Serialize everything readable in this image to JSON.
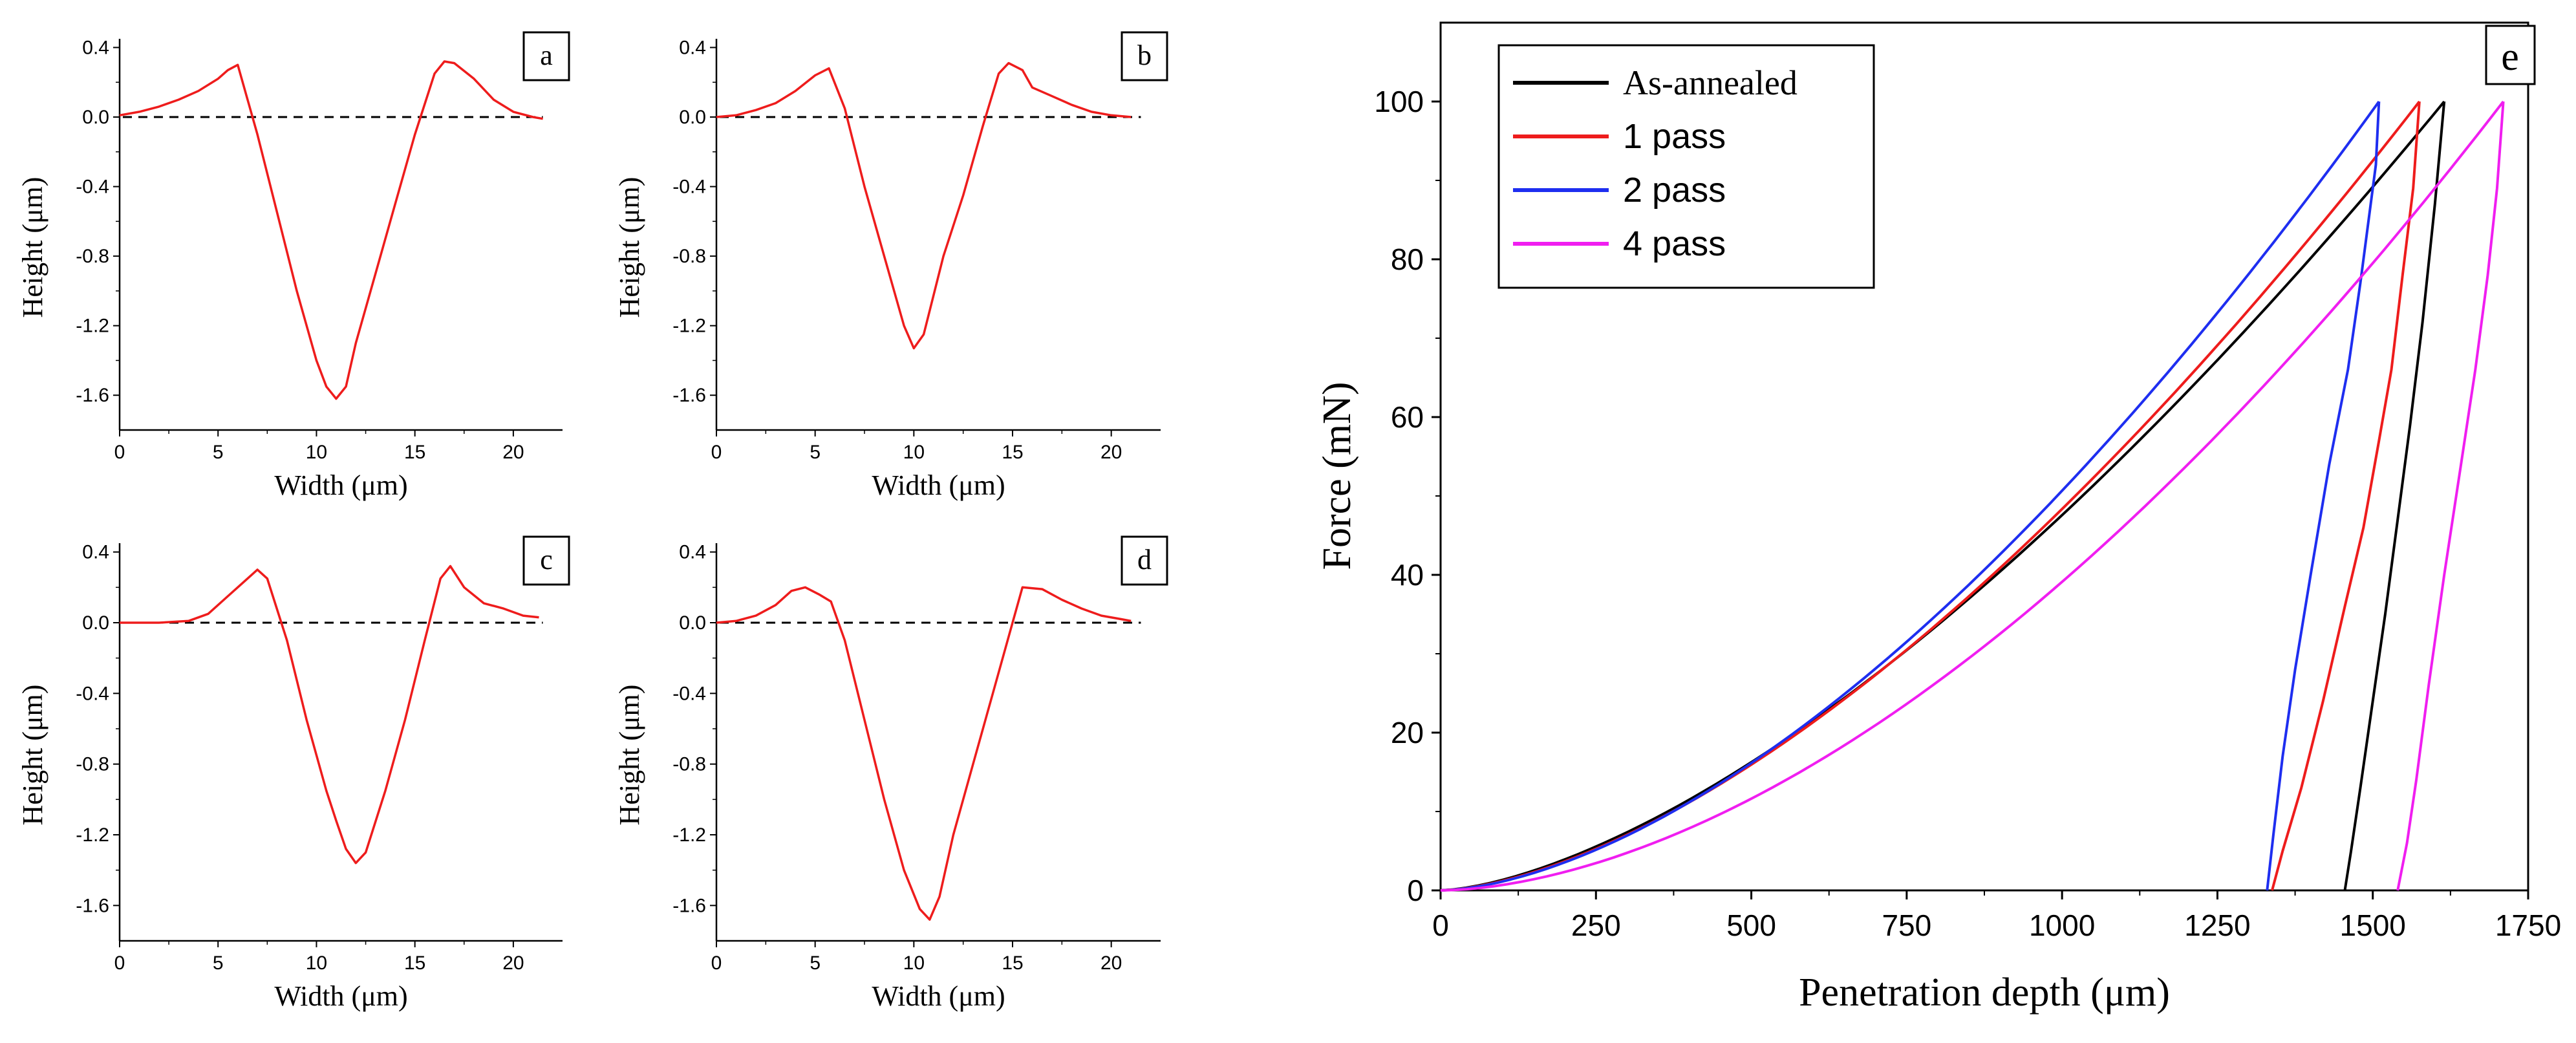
{
  "figure": {
    "panels": [
      "a",
      "b",
      "c",
      "d",
      "e"
    ]
  },
  "colors": {
    "profile": "#ee1c1c",
    "baseline": "#000000",
    "as_annealed": "#000000",
    "pass1": "#ee1c1c",
    "pass2": "#1e2ef0",
    "pass4": "#f01ef0"
  },
  "chart_data": [
    {
      "id": "a",
      "type": "line",
      "panel_label": "a",
      "xlabel": "Width (μm)",
      "ylabel": "Height (μm)",
      "xlim": [
        0,
        22.5
      ],
      "ylim": [
        -1.8,
        0.45
      ],
      "xticks": [
        0,
        5,
        10,
        15,
        20
      ],
      "yticks": [
        0.4,
        0.0,
        -0.4,
        -0.8,
        -1.2,
        -1.6
      ],
      "ytick_labels": [
        "0.4",
        "0.0",
        "-0.4",
        "-0.8",
        "-1.2",
        "-1.6"
      ],
      "baseline": 0,
      "series": [
        {
          "name": "profile",
          "x": [
            0,
            1,
            2,
            3,
            4,
            5,
            5.5,
            6,
            7,
            8,
            9,
            10,
            10.5,
            11,
            11.5,
            12,
            13,
            14,
            15,
            16,
            16.5,
            17,
            18,
            19,
            20,
            21,
            21.5
          ],
          "y": [
            0.01,
            0.03,
            0.06,
            0.1,
            0.15,
            0.22,
            0.27,
            0.3,
            -0.1,
            -0.55,
            -1.0,
            -1.4,
            -1.55,
            -1.62,
            -1.55,
            -1.3,
            -0.9,
            -0.5,
            -0.1,
            0.25,
            0.32,
            0.31,
            0.22,
            0.1,
            0.03,
            0.0,
            -0.01
          ]
        }
      ]
    },
    {
      "id": "b",
      "type": "line",
      "panel_label": "b",
      "xlabel": "Width (μm)",
      "ylabel": "Height (μm)",
      "xlim": [
        0,
        22.5
      ],
      "ylim": [
        -1.8,
        0.45
      ],
      "xticks": [
        0,
        5,
        10,
        15,
        20
      ],
      "yticks": [
        0.4,
        0.0,
        -0.4,
        -0.8,
        -1.2,
        -1.6
      ],
      "ytick_labels": [
        "0.4",
        "0.0",
        "-0.4",
        "-0.8",
        "-1.2",
        "-1.6"
      ],
      "baseline": 0,
      "series": [
        {
          "name": "profile",
          "x": [
            0,
            1,
            2,
            3,
            4,
            5,
            5.7,
            6.5,
            7.5,
            8.5,
            9.5,
            10,
            10.5,
            11.5,
            12.5,
            13.5,
            14.3,
            14.8,
            15.5,
            16,
            17,
            18,
            19,
            20,
            21
          ],
          "y": [
            0.0,
            0.01,
            0.04,
            0.08,
            0.15,
            0.24,
            0.28,
            0.05,
            -0.4,
            -0.8,
            -1.2,
            -1.33,
            -1.25,
            -0.8,
            -0.45,
            -0.05,
            0.25,
            0.31,
            0.27,
            0.17,
            0.12,
            0.07,
            0.03,
            0.01,
            0.0
          ]
        }
      ]
    },
    {
      "id": "c",
      "type": "line",
      "panel_label": "c",
      "xlabel": "Width (μm)",
      "ylabel": "Height (μm)",
      "xlim": [
        0,
        22.5
      ],
      "ylim": [
        -1.8,
        0.45
      ],
      "xticks": [
        0,
        5,
        10,
        15,
        20
      ],
      "yticks": [
        0.4,
        0.0,
        -0.4,
        -0.8,
        -1.2,
        -1.6
      ],
      "ytick_labels": [
        "0.4",
        "0.0",
        "-0.4",
        "-0.8",
        "-1.2",
        "-1.6"
      ],
      "baseline": 0,
      "series": [
        {
          "name": "profile",
          "x": [
            0,
            2,
            3.5,
            4.5,
            5.5,
            6.5,
            7,
            7.5,
            8.5,
            9.5,
            10.5,
            11,
            11.5,
            12,
            12.5,
            13.5,
            14.5,
            15.5,
            16.3,
            16.8,
            17.5,
            18.5,
            19.5,
            20.5,
            21.3
          ],
          "y": [
            0.0,
            0.0,
            0.01,
            0.05,
            0.15,
            0.25,
            0.3,
            0.25,
            -0.1,
            -0.55,
            -0.95,
            -1.12,
            -1.28,
            -1.36,
            -1.3,
            -0.95,
            -0.55,
            -0.1,
            0.25,
            0.32,
            0.2,
            0.11,
            0.08,
            0.04,
            0.03
          ]
        }
      ]
    },
    {
      "id": "d",
      "type": "line",
      "panel_label": "d",
      "xlabel": "Width (μm)",
      "ylabel": "Height (μm)",
      "xlim": [
        0,
        22.5
      ],
      "ylim": [
        -1.8,
        0.45
      ],
      "xticks": [
        0,
        5,
        10,
        15,
        20
      ],
      "yticks": [
        0.4,
        0.0,
        -0.4,
        -0.8,
        -1.2,
        -1.6
      ],
      "ytick_labels": [
        "0.4",
        "0.0",
        "-0.4",
        "-0.8",
        "-1.2",
        "-1.6"
      ],
      "baseline": 0,
      "series": [
        {
          "name": "profile",
          "x": [
            0,
            1,
            2,
            3,
            3.8,
            4.5,
            5.2,
            5.8,
            6.5,
            7.5,
            8.5,
            9.5,
            10.3,
            10.8,
            11.3,
            12,
            13,
            14,
            15,
            15.5,
            16.5,
            17.5,
            18.5,
            19.5,
            20.5,
            21
          ],
          "y": [
            0.0,
            0.01,
            0.04,
            0.1,
            0.18,
            0.2,
            0.16,
            0.12,
            -0.1,
            -0.55,
            -1.0,
            -1.4,
            -1.62,
            -1.68,
            -1.55,
            -1.2,
            -0.8,
            -0.4,
            0.0,
            0.2,
            0.19,
            0.13,
            0.08,
            0.04,
            0.02,
            0.01
          ]
        }
      ]
    },
    {
      "id": "e",
      "type": "line",
      "panel_label": "e",
      "xlabel": "Penetration depth (μm)",
      "ylabel": "Force (mN)",
      "xlim": [
        0,
        1750
      ],
      "ylim": [
        0,
        110
      ],
      "xticks": [
        0,
        250,
        500,
        750,
        1000,
        1250,
        1500,
        1750
      ],
      "yticks": [
        0,
        20,
        40,
        60,
        80,
        100
      ],
      "legend": "top-left",
      "series": [
        {
          "name": "As-annealed",
          "loading": {
            "max_depth": 1615,
            "max_force": 100,
            "exponent": 1.55
          },
          "unloading": {
            "x": [
              1615,
              1600,
              1580,
              1560,
              1540,
              1520,
              1500,
              1480,
              1465,
              1455
            ],
            "y": [
              100,
              87,
              72,
              59,
              47,
              35,
              24,
              13,
              5,
              0
            ]
          }
        },
        {
          "name": "1 pass",
          "loading": {
            "max_depth": 1575,
            "max_force": 100,
            "exponent": 1.6
          },
          "unloading": {
            "x": [
              1575,
              1565,
              1548,
              1530,
              1510,
              1485,
              1455,
              1420,
              1385,
              1355,
              1338
            ],
            "y": [
              100,
              89,
              78,
              66,
              57,
              46,
              36,
              24,
              13,
              5,
              0
            ]
          }
        },
        {
          "name": "2 pass",
          "loading": {
            "max_depth": 1510,
            "max_force": 100,
            "exponent": 1.65
          },
          "unloading": {
            "x": [
              1510,
              1505,
              1495,
              1480,
              1460,
              1430,
              1400,
              1375,
              1355,
              1340,
              1330
            ],
            "y": [
              100,
              92,
              86,
              77,
              66,
              54,
              40,
              28,
              17,
              7,
              0
            ]
          }
        },
        {
          "name": "4 pass",
          "loading": {
            "max_depth": 1710,
            "max_force": 100,
            "exponent": 1.75
          },
          "unloading": {
            "x": [
              1710,
              1700,
              1685,
              1665,
              1640,
              1615,
              1590,
              1570,
              1555,
              1540
            ],
            "y": [
              100,
              89,
              78,
              66,
              53,
              40,
              26,
              14,
              6,
              0
            ]
          }
        }
      ]
    }
  ]
}
